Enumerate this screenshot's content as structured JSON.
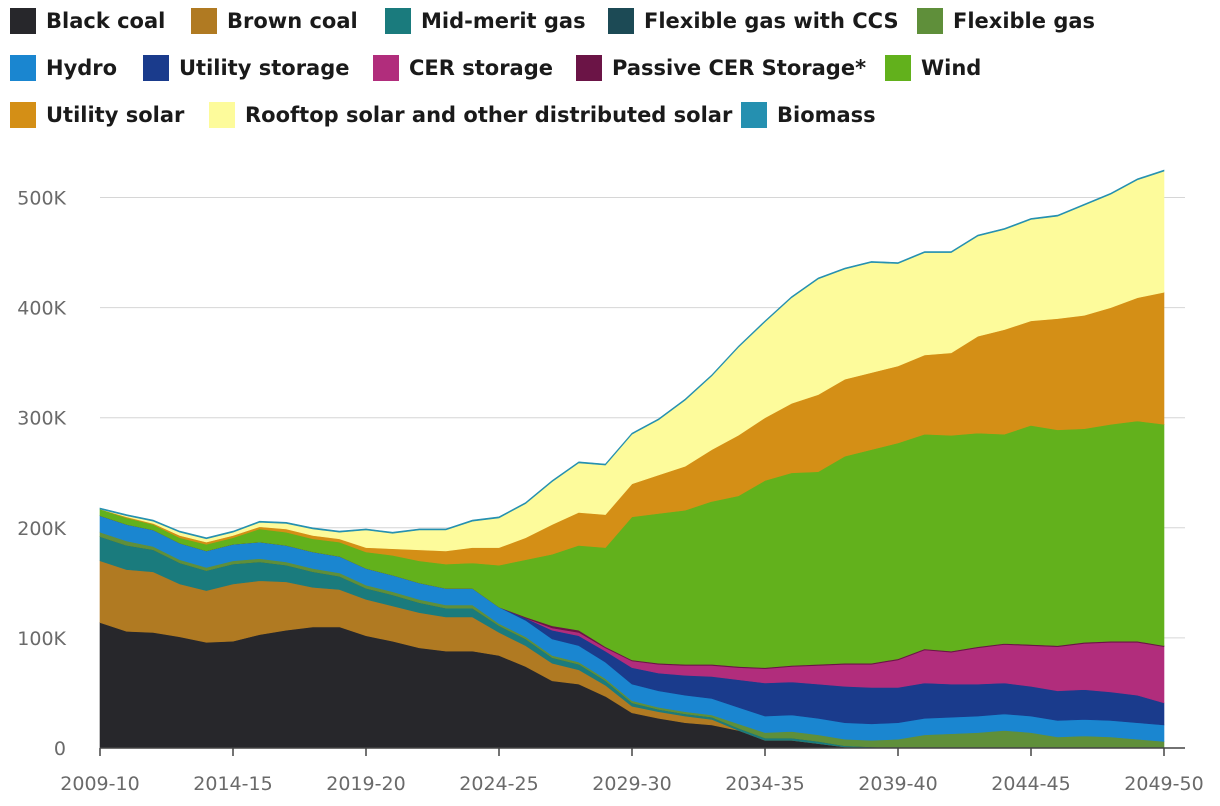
{
  "chart_data": {
    "type": "area",
    "stacked": true,
    "title": "",
    "xlabel": "",
    "ylabel": "",
    "ylim": [
      0,
      525000
    ],
    "grid": true,
    "legend_position": "top",
    "x_tick_labels": [
      "2009-10",
      "2014-15",
      "2019-20",
      "2024-25",
      "2029-30",
      "2034-35",
      "2039-40",
      "2044-45",
      "2049-50"
    ],
    "y_tick_labels": [
      "0",
      "100K",
      "200K",
      "300K",
      "400K",
      "500K"
    ],
    "y_ticks": [
      0,
      100000,
      200000,
      300000,
      400000,
      500000
    ],
    "x_start_year": 2009,
    "x_end_year": 2049,
    "series": [
      {
        "name": "Black coal",
        "color": "#27272b",
        "values": [
          114000,
          106000,
          105000,
          101000,
          96000,
          97000,
          103000,
          107000,
          110000,
          110000,
          102000,
          97000,
          91000,
          88000,
          88000,
          84000,
          74000,
          61000,
          58000,
          47000,
          32000,
          27000,
          23000,
          21000,
          16000,
          7000,
          7000,
          4000,
          1000,
          0,
          0,
          0,
          0,
          0,
          0,
          0,
          0,
          0,
          0,
          0,
          0
        ]
      },
      {
        "name": "Brown coal",
        "color": "#b07a22",
        "values": [
          56000,
          56000,
          55000,
          48000,
          47000,
          52000,
          49000,
          44000,
          36000,
          34000,
          33000,
          32000,
          32000,
          31000,
          31000,
          21000,
          19000,
          16000,
          13000,
          10000,
          6000,
          6000,
          6000,
          5000,
          0,
          0,
          0,
          0,
          0,
          0,
          0,
          0,
          0,
          0,
          0,
          0,
          0,
          0,
          0,
          0,
          0
        ]
      },
      {
        "name": "Mid-merit gas",
        "color": "#1a7b7d",
        "values": [
          22000,
          22000,
          20000,
          19000,
          18000,
          18000,
          17000,
          15000,
          14000,
          12000,
          10000,
          10000,
          9000,
          8000,
          8000,
          6000,
          6000,
          5000,
          5000,
          4000,
          3000,
          2000,
          2000,
          2000,
          2000,
          2000,
          2000,
          2000,
          1000,
          1000,
          0,
          0,
          0,
          0,
          0,
          0,
          0,
          0,
          0,
          0,
          0
        ]
      },
      {
        "name": "Flexible gas with CCS",
        "color": "#1c4a55",
        "values": [
          0,
          0,
          0,
          0,
          0,
          0,
          0,
          0,
          0,
          0,
          0,
          0,
          0,
          0,
          0,
          0,
          0,
          0,
          0,
          0,
          0,
          0,
          0,
          0,
          0,
          0,
          0,
          0,
          0,
          0,
          0,
          0,
          0,
          0,
          0,
          0,
          0,
          0,
          0,
          0,
          0
        ]
      },
      {
        "name": "Flexible gas",
        "color": "#5f8f3a",
        "values": [
          4000,
          4000,
          3000,
          3000,
          3000,
          3000,
          3000,
          3000,
          3000,
          3000,
          3000,
          3000,
          3000,
          3000,
          3000,
          2000,
          2000,
          2000,
          2000,
          2000,
          2000,
          2000,
          2000,
          2000,
          4000,
          5000,
          6000,
          6000,
          6000,
          6000,
          8000,
          12000,
          13000,
          14000,
          16000,
          14000,
          10000,
          11000,
          10000,
          8000,
          6000
        ]
      },
      {
        "name": "Hydro",
        "color": "#1a86d0",
        "values": [
          15000,
          15000,
          15000,
          15000,
          15000,
          15000,
          15000,
          15000,
          15000,
          15000,
          15000,
          15000,
          15000,
          15000,
          15000,
          15000,
          15000,
          15000,
          15000,
          15000,
          15000,
          15000,
          15000,
          15000,
          15000,
          15000,
          15000,
          15000,
          15000,
          15000,
          15000,
          15000,
          15000,
          15000,
          15000,
          15000,
          15000,
          15000,
          15000,
          15000,
          15000
        ]
      },
      {
        "name": "Utility storage",
        "color": "#1a3b8c",
        "values": [
          0,
          0,
          0,
          0,
          0,
          0,
          0,
          0,
          0,
          0,
          0,
          0,
          0,
          0,
          0,
          0,
          2000,
          8000,
          9000,
          10000,
          15000,
          16000,
          18000,
          20000,
          25000,
          30000,
          30000,
          31000,
          33000,
          33000,
          32000,
          32000,
          30000,
          29000,
          28000,
          27000,
          27000,
          27000,
          26000,
          25000,
          20000
        ]
      },
      {
        "name": "CER storage",
        "color": "#b12d7c",
        "values": [
          0,
          0,
          0,
          0,
          0,
          0,
          0,
          0,
          0,
          0,
          0,
          0,
          0,
          0,
          0,
          0,
          0,
          2000,
          3000,
          3000,
          6000,
          8000,
          9000,
          10000,
          11000,
          13000,
          14000,
          17000,
          20000,
          21000,
          25000,
          30000,
          29000,
          33000,
          35000,
          37000,
          40000,
          42000,
          45000,
          48000,
          51000
        ]
      },
      {
        "name": "Passive CER Storage*",
        "color": "#6b1446",
        "values": [
          0,
          0,
          0,
          0,
          0,
          0,
          0,
          0,
          0,
          0,
          0,
          0,
          0,
          0,
          0,
          0,
          1000,
          2000,
          2000,
          1000,
          1000,
          1000,
          1000,
          1000,
          1000,
          1000,
          1000,
          1000,
          1000,
          1000,
          1000,
          1000,
          1000,
          1000,
          1000,
          1000,
          1000,
          1000,
          1000,
          1000,
          1000
        ]
      },
      {
        "name": "Wind",
        "color": "#62b11c",
        "values": [
          6000,
          6000,
          5000,
          5000,
          6000,
          6000,
          12000,
          12000,
          12000,
          13000,
          15000,
          18000,
          20000,
          22000,
          23000,
          38000,
          52000,
          65000,
          77000,
          90000,
          130000,
          136000,
          140000,
          148000,
          155000,
          170000,
          175000,
          175000,
          188000,
          194000,
          196000,
          195000,
          196000,
          194000,
          190000,
          199000,
          196000,
          194000,
          197000,
          200000,
          201000
        ]
      },
      {
        "name": "Utility solar",
        "color": "#d48f16",
        "values": [
          0,
          1000,
          1000,
          2000,
          2000,
          2000,
          2000,
          3000,
          3000,
          3000,
          4000,
          6000,
          10000,
          12000,
          14000,
          16000,
          20000,
          27000,
          30000,
          30000,
          30000,
          35000,
          40000,
          47000,
          55000,
          57000,
          63000,
          70000,
          70000,
          70000,
          70000,
          72000,
          75000,
          88000,
          95000,
          95000,
          101000,
          103000,
          106000,
          112000,
          120000
        ]
      },
      {
        "name": "Rooftop solar and other distributed solar",
        "color": "#fdfb9b",
        "values": [
          0,
          1000,
          2000,
          3000,
          3000,
          3000,
          4000,
          5000,
          6000,
          6000,
          16000,
          14000,
          18000,
          19000,
          24000,
          27000,
          31000,
          39000,
          45000,
          45000,
          45000,
          50000,
          60000,
          67000,
          80000,
          87000,
          96000,
          105000,
          100000,
          100000,
          93000,
          93000,
          91000,
          91000,
          91000,
          92000,
          93000,
          100000,
          103000,
          107000,
          110000
        ]
      },
      {
        "name": "Biomass",
        "color": "#2590b0",
        "values": [
          1000,
          1000,
          1000,
          1000,
          1000,
          1000,
          1000,
          1000,
          1000,
          1000,
          1000,
          1000,
          1000,
          1000,
          1000,
          1000,
          1000,
          1000,
          1000,
          1000,
          1000,
          1000,
          1000,
          1000,
          1000,
          1000,
          1000,
          1000,
          1000,
          1000,
          1000,
          1000,
          1000,
          1000,
          1000,
          1000,
          1000,
          1000,
          1000,
          1000,
          1000
        ]
      }
    ]
  }
}
